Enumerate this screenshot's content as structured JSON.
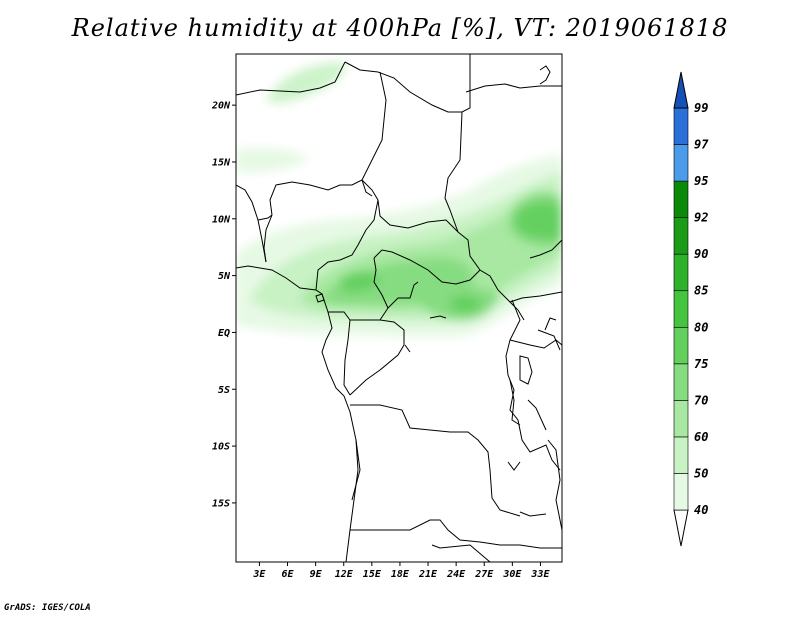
{
  "title": "Relative humidity at 400hPa [%], VT: 2019061818",
  "credit": "GrADS: IGES/COLA",
  "map": {
    "lat_ticks": [
      {
        "value": 20,
        "label": "20N"
      },
      {
        "value": 15,
        "label": "15N"
      },
      {
        "value": 10,
        "label": "10N"
      },
      {
        "value": 5,
        "label": "5N"
      },
      {
        "value": 0,
        "label": "EQ"
      },
      {
        "value": -5,
        "label": "5S"
      },
      {
        "value": -10,
        "label": "10S"
      },
      {
        "value": -15,
        "label": "15S"
      }
    ],
    "lon_ticks": [
      {
        "value": 3,
        "label": "3E"
      },
      {
        "value": 6,
        "label": "6E"
      },
      {
        "value": 9,
        "label": "9E"
      },
      {
        "value": 12,
        "label": "12E"
      },
      {
        "value": 15,
        "label": "15E"
      },
      {
        "value": 18,
        "label": "18E"
      },
      {
        "value": 21,
        "label": "21E"
      },
      {
        "value": 24,
        "label": "24E"
      },
      {
        "value": 27,
        "label": "27E"
      },
      {
        "value": 30,
        "label": "30E"
      },
      {
        "value": 33,
        "label": "33E"
      }
    ]
  },
  "colorbar": {
    "levels": [
      "40",
      "50",
      "60",
      "70",
      "75",
      "80",
      "85",
      "90",
      "92",
      "95",
      "97",
      "99"
    ],
    "colors": [
      "#ffffff",
      "#e6f9e4",
      "#c8f2c4",
      "#a8e8a2",
      "#86dc80",
      "#63d05e",
      "#44c43f",
      "#2fb22b",
      "#1b9b18",
      "#0a8a08",
      "#4a9be8",
      "#2a70d8",
      "#1450b8"
    ]
  }
}
